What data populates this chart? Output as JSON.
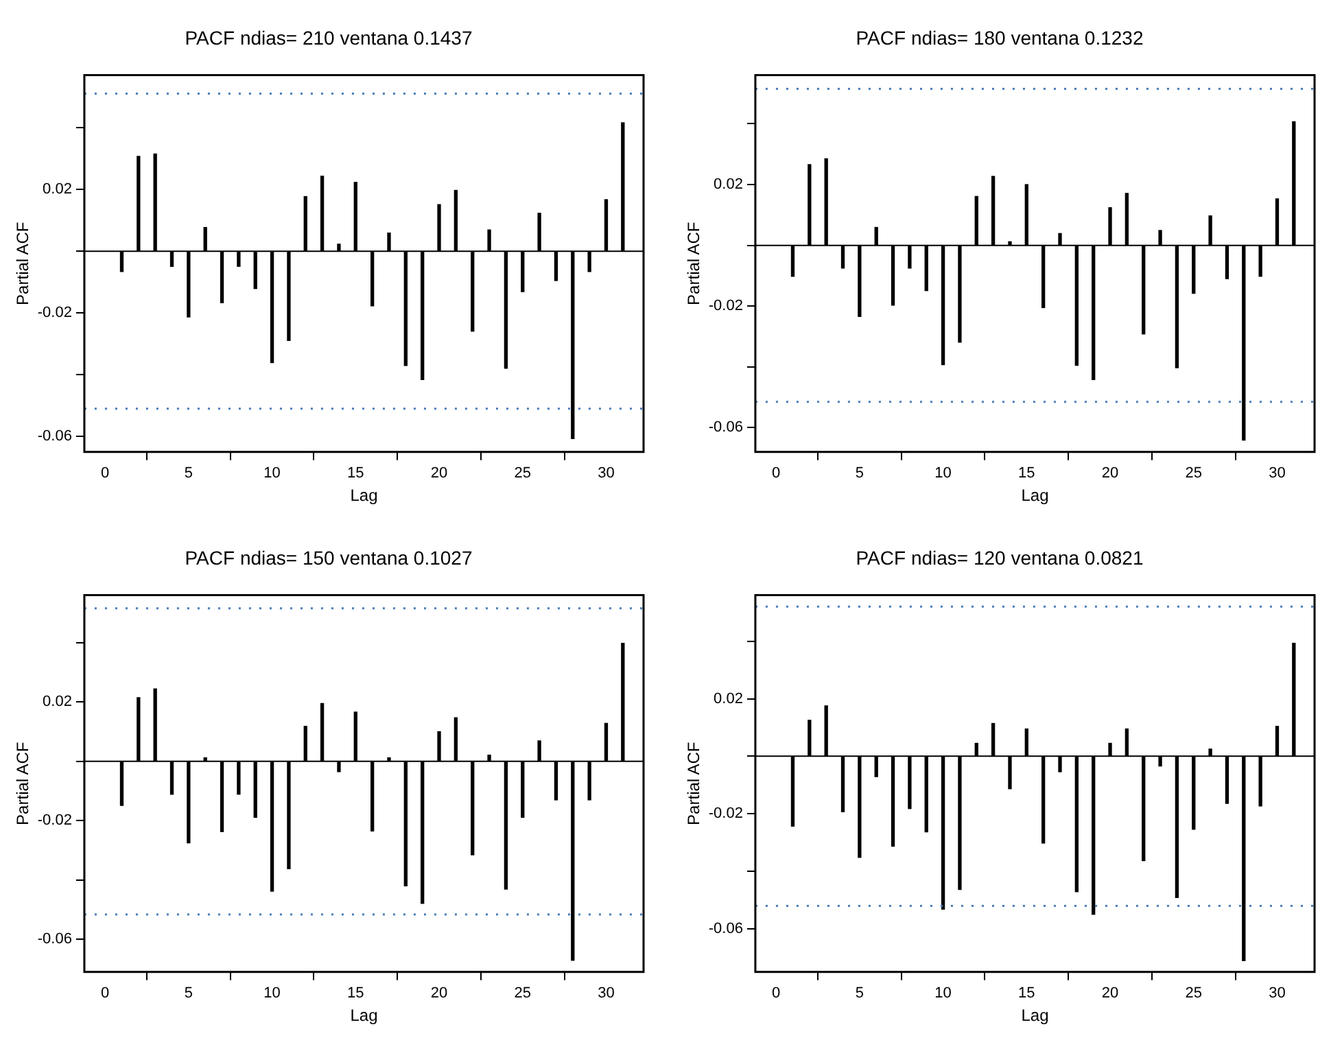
{
  "chart_data": [
    {
      "type": "bar",
      "title": "PACF ndias= 210 ventana 0.1437",
      "xlabel": "Lag",
      "ylabel": "Partial ACF",
      "x": [
        1,
        2,
        3,
        4,
        5,
        6,
        7,
        8,
        9,
        10,
        11,
        12,
        13,
        14,
        15,
        16,
        17,
        18,
        19,
        20,
        21,
        22,
        23,
        24,
        25,
        26,
        27,
        28,
        29,
        30,
        31
      ],
      "series": [
        {
          "color": "#000000",
          "values": [
            -0.0066,
            0.0307,
            0.0315,
            -0.0049,
            -0.0213,
            0.0077,
            -0.0167,
            -0.0049,
            -0.0121,
            -0.0361,
            -0.0289,
            0.0177,
            0.0243,
            0.0023,
            0.0223,
            -0.0177,
            0.0059,
            -0.037,
            -0.0416,
            0.0151,
            0.0197,
            -0.0259,
            0.0069,
            -0.0379,
            -0.0131,
            0.0123,
            -0.0095,
            -0.0607,
            -0.0066,
            0.0167,
            0.0416
          ]
        }
      ],
      "xlim": [
        -1.24,
        32.24
      ],
      "ylim": [
        -0.065,
        0.057
      ],
      "xticks": [
        0,
        5,
        10,
        15,
        20,
        25,
        30
      ],
      "yticks": [
        -0.06,
        {
          "value": -0.04,
          "label": null
        },
        -0.02,
        {
          "value": 0,
          "label": null
        },
        0.02,
        {
          "value": 0.04,
          "label": null
        }
      ],
      "ref_lines": [
        {
          "axis": "y",
          "value": 0.051,
          "color": "#4a7ebb",
          "line_style": "dotted"
        },
        {
          "axis": "y",
          "value": -0.051,
          "color": "#4a7ebb",
          "line_style": "dotted"
        },
        {
          "axis": "y",
          "value": 0,
          "color": "#000000",
          "line_style": "solid"
        }
      ],
      "grid": false,
      "legend": false
    },
    {
      "type": "bar",
      "title": "PACF ndias= 180 ventana 0.1232",
      "xlabel": "Lag",
      "ylabel": "Partial ACF",
      "x": [
        1,
        2,
        3,
        4,
        5,
        6,
        7,
        8,
        9,
        10,
        11,
        12,
        13,
        14,
        15,
        16,
        17,
        18,
        19,
        20,
        21,
        22,
        23,
        24,
        25,
        26,
        27,
        28,
        29,
        30,
        31
      ],
      "series": [
        {
          "color": "#000000",
          "values": [
            -0.0102,
            0.0266,
            0.0285,
            -0.0075,
            -0.0234,
            0.0059,
            -0.0197,
            -0.0075,
            -0.0149,
            -0.0393,
            -0.0319,
            0.0161,
            0.0227,
            0.0012,
            0.02,
            -0.0205,
            0.0039,
            -0.0395,
            -0.0442,
            0.0124,
            0.0171,
            -0.0292,
            0.0049,
            -0.0403,
            -0.0158,
            0.0097,
            -0.011,
            -0.0641,
            -0.0102,
            0.0153,
            0.0407
          ]
        }
      ],
      "xlim": [
        -1.24,
        32.24
      ],
      "ylim": [
        -0.068,
        0.056
      ],
      "xticks": [
        0,
        5,
        10,
        15,
        20,
        25,
        30
      ],
      "yticks": [
        -0.06,
        {
          "value": -0.04,
          "label": null
        },
        -0.02,
        {
          "value": 0,
          "label": null
        },
        0.02,
        {
          "value": 0.04,
          "label": null
        }
      ],
      "ref_lines": [
        {
          "axis": "y",
          "value": 0.0515,
          "color": "#4a7ebb",
          "line_style": "dotted"
        },
        {
          "axis": "y",
          "value": -0.0515,
          "color": "#4a7ebb",
          "line_style": "dotted"
        },
        {
          "axis": "y",
          "value": 0,
          "color": "#000000",
          "line_style": "solid"
        }
      ],
      "grid": false,
      "legend": false
    },
    {
      "type": "bar",
      "title": "PACF ndias= 150 ventana 0.1027",
      "xlabel": "Lag",
      "ylabel": "Partial ACF",
      "x": [
        1,
        2,
        3,
        4,
        5,
        6,
        7,
        8,
        9,
        10,
        11,
        12,
        13,
        14,
        15,
        16,
        17,
        18,
        19,
        20,
        21,
        22,
        23,
        24,
        25,
        26,
        27,
        28,
        29,
        30,
        31
      ],
      "series": [
        {
          "color": "#000000",
          "values": [
            -0.0149,
            0.0215,
            0.0244,
            -0.0111,
            -0.0275,
            0.0012,
            -0.0237,
            -0.0111,
            -0.0189,
            -0.0438,
            -0.0362,
            0.0118,
            0.0195,
            -0.0035,
            0.0166,
            -0.0235,
            0.0012,
            -0.042,
            -0.0479,
            0.01,
            0.0147,
            -0.0315,
            0.0021,
            -0.0431,
            -0.0189,
            0.0069,
            -0.013,
            -0.0671,
            -0.013,
            0.0128,
            0.0398
          ]
        }
      ],
      "xlim": [
        -1.24,
        32.24
      ],
      "ylim": [
        -0.071,
        0.056
      ],
      "xticks": [
        0,
        5,
        10,
        15,
        20,
        25,
        30
      ],
      "yticks": [
        -0.06,
        {
          "value": -0.04,
          "label": null
        },
        -0.02,
        {
          "value": 0,
          "label": null
        },
        0.02,
        {
          "value": 0.04,
          "label": null
        }
      ],
      "ref_lines": [
        {
          "axis": "y",
          "value": 0.0516,
          "color": "#4a7ebb",
          "line_style": "dotted"
        },
        {
          "axis": "y",
          "value": -0.0516,
          "color": "#4a7ebb",
          "line_style": "dotted"
        },
        {
          "axis": "y",
          "value": 0,
          "color": "#000000",
          "line_style": "solid"
        }
      ],
      "grid": false,
      "legend": false
    },
    {
      "type": "bar",
      "title": "PACF ndias= 120 ventana 0.0821",
      "xlabel": "Lag",
      "ylabel": "Partial ACF",
      "x": [
        1,
        2,
        3,
        4,
        5,
        6,
        7,
        8,
        9,
        10,
        11,
        12,
        13,
        14,
        15,
        16,
        17,
        18,
        19,
        20,
        21,
        22,
        23,
        24,
        25,
        26,
        27,
        28,
        29,
        30,
        31
      ],
      "series": [
        {
          "color": "#000000",
          "values": [
            -0.0243,
            0.0125,
            0.0175,
            -0.0193,
            -0.0352,
            -0.0071,
            -0.0313,
            -0.0182,
            -0.0263,
            -0.0532,
            -0.0463,
            0.0045,
            0.0114,
            -0.0113,
            0.0095,
            -0.0302,
            -0.0054,
            -0.0471,
            -0.055,
            0.0045,
            0.0095,
            -0.0363,
            -0.0034,
            -0.0491,
            -0.0254,
            0.0025,
            -0.0164,
            -0.0711,
            -0.0173,
            0.0104,
            0.0393
          ]
        }
      ],
      "xlim": [
        -1.24,
        32.24
      ],
      "ylim": [
        -0.075,
        0.056
      ],
      "xticks": [
        0,
        5,
        10,
        15,
        20,
        25,
        30
      ],
      "yticks": [
        -0.06,
        {
          "value": -0.04,
          "label": null
        },
        -0.02,
        {
          "value": 0,
          "label": null
        },
        0.02,
        {
          "value": 0.04,
          "label": null
        }
      ],
      "ref_lines": [
        {
          "axis": "y",
          "value": 0.052,
          "color": "#4a7ebb",
          "line_style": "dotted"
        },
        {
          "axis": "y",
          "value": -0.052,
          "color": "#4a7ebb",
          "line_style": "dotted"
        },
        {
          "axis": "y",
          "value": 0,
          "color": "#000000",
          "line_style": "solid"
        }
      ],
      "grid": false,
      "legend": false
    }
  ]
}
